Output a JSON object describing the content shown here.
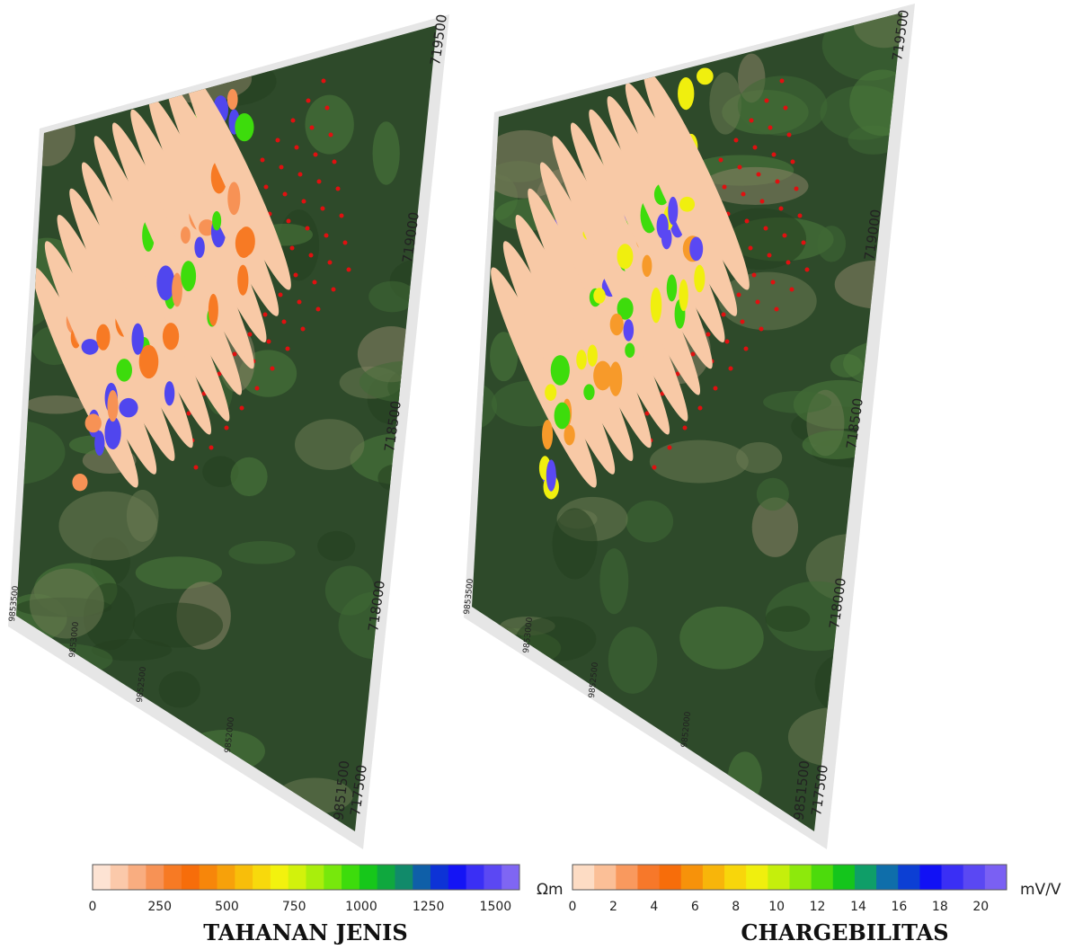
{
  "panels": [
    {
      "title": "TAHANAN JENIS",
      "unit": "Ωm",
      "easting_labels": [
        "719500",
        "719000",
        "718500",
        "718000",
        "717500"
      ],
      "northing_labels": [
        "9853500",
        "9853000",
        "9852500",
        "9852000",
        "9851500"
      ],
      "colorbar_ticks": [
        "0",
        "250",
        "500",
        "750",
        "1000",
        "1250",
        "1500"
      ],
      "colorbar_colors": [
        "#fde3d3",
        "#fbc9aa",
        "#f9ad80",
        "#f79255",
        "#f77a24",
        "#f76d0a",
        "#f7860a",
        "#f7a10a",
        "#f8be0a",
        "#f8d90c",
        "#f3f20e",
        "#d2f20c",
        "#a9ee0c",
        "#77e80c",
        "#3ddc0c",
        "#16c71a",
        "#0fa83e",
        "#118a6a",
        "#0f5fa8",
        "#0d33d6",
        "#1414f5",
        "#3a2ff5",
        "#5b48f3",
        "#7f66f3"
      ]
    },
    {
      "title": "CHARGEBILITAS",
      "unit": "mV/V",
      "easting_labels": [
        "719500",
        "719000",
        "718500",
        "718000",
        "717500"
      ],
      "northing_labels": [
        "9853500",
        "9853000",
        "9852500",
        "9852000",
        "9851500"
      ],
      "colorbar_ticks": [
        "0",
        "2",
        "4",
        "6",
        "8",
        "10",
        "12",
        "14",
        "16",
        "18",
        "20"
      ],
      "colorbar_colors": [
        "#fddcc4",
        "#fbbf97",
        "#f9995e",
        "#f7782a",
        "#f76d0a",
        "#f7920a",
        "#f8b50a",
        "#f8d60b",
        "#f0ef0e",
        "#c5ef0c",
        "#8de90c",
        "#4cdb0c",
        "#14c51c",
        "#0f9e68",
        "#0f6eaa",
        "#0c3fd4",
        "#1111f5",
        "#3a2ff5",
        "#5a48f3",
        "#7a60f3"
      ]
    }
  ]
}
